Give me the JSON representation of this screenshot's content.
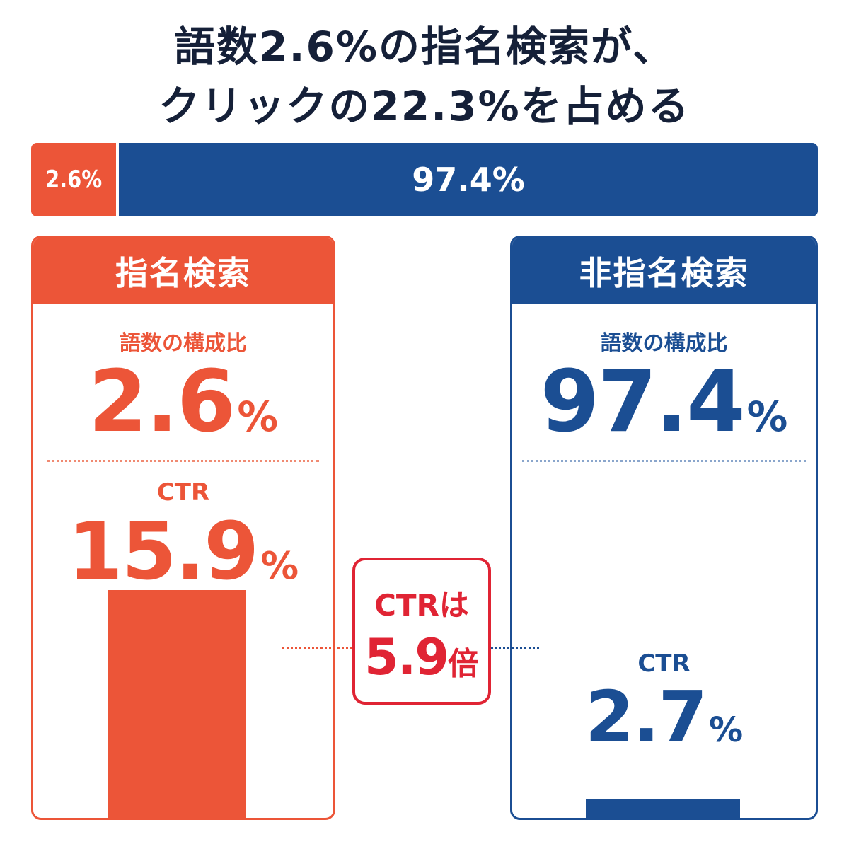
{
  "title_line1": "語数2.6%の指名検索が、",
  "title_line2": "クリックの22.3%を占める",
  "chart_data": [
    {
      "type": "bar",
      "stacked": true,
      "orientation": "horizontal",
      "categories": [
        "指名検索",
        "非指名検索"
      ],
      "values": [
        2.6,
        97.4
      ],
      "labels": [
        "2.6%",
        "97.4%"
      ],
      "colors": [
        "#ec5538",
        "#1b4e93"
      ],
      "xlim": [
        0,
        100
      ]
    },
    {
      "type": "bar",
      "categories": [
        "指名検索",
        "非指名検索"
      ],
      "values": [
        15.9,
        2.7
      ],
      "ylim": [
        0,
        23
      ],
      "colors": [
        "#ec5538",
        "#1b4e93"
      ]
    }
  ],
  "panels": {
    "brand": {
      "header": "指名検索",
      "share_label": "語数の構成比",
      "share_value": "2.6",
      "ctr_label": "CTR",
      "ctr_value": "15.9",
      "unit": "%"
    },
    "nonbrand": {
      "header": "非指名検索",
      "share_label": "語数の構成比",
      "share_value": "97.4",
      "ctr_label": "CTR",
      "ctr_value": "2.7",
      "unit": "%"
    }
  },
  "callout": {
    "line1": "CTRは",
    "value": "5.9",
    "unit": "倍"
  }
}
